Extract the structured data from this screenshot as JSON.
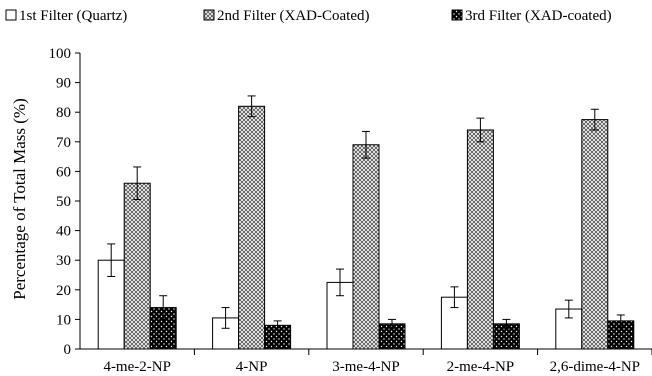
{
  "chart_data": {
    "type": "bar",
    "title": "",
    "xlabel": "",
    "ylabel": "Percentage of Total Mass (%)",
    "ylim": [
      0,
      100
    ],
    "yticks": [
      0,
      10,
      20,
      30,
      40,
      50,
      60,
      70,
      80,
      90,
      100
    ],
    "grid": false,
    "legend_position": "top",
    "categories": [
      "4-me-2-NP",
      "4-NP",
      "3-me-4-NP",
      "2-me-4-NP",
      "2,6-dime-4-NP"
    ],
    "series": [
      {
        "name": "1st Filter (Quartz)",
        "pattern": "white",
        "values": [
          30,
          10.5,
          22.5,
          17.5,
          13.5
        ],
        "errors": [
          5.5,
          3.5,
          4.5,
          3.5,
          3
        ]
      },
      {
        "name": "2nd Filter (XAD-Coated)",
        "pattern": "crosshatch",
        "values": [
          56,
          82,
          69,
          74,
          77.5
        ],
        "errors": [
          5.5,
          3.5,
          4.5,
          4,
          3.5
        ]
      },
      {
        "name": "3rd Filter (XAD-coated)",
        "pattern": "black-dotted",
        "values": [
          14,
          8,
          8.5,
          8.5,
          9.5
        ],
        "errors": [
          4,
          1.5,
          1.5,
          1.5,
          2
        ]
      }
    ]
  }
}
